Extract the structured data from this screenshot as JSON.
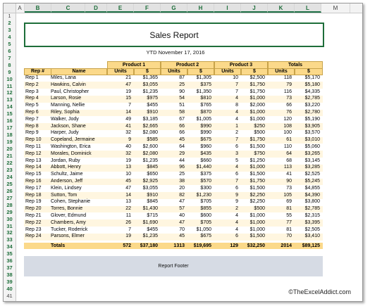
{
  "columns": [
    "A",
    "B",
    "C",
    "D",
    "E",
    "F",
    "G",
    "H",
    "I",
    "J",
    "K",
    "L",
    "M"
  ],
  "report": {
    "title": "Sales Report",
    "subtitle": "YTD November 17, 2016",
    "footer": "Report Footer"
  },
  "headers": {
    "groups": [
      "Product 1",
      "Product 2",
      "Product 3",
      "Totals"
    ],
    "rep_no": "Rep #",
    "name": "Name",
    "units": "Units",
    "dollars": "$"
  },
  "rows": [
    [
      "Rep 1",
      "Miles, Lana",
      "21",
      "$1,365",
      "87",
      "$1,305",
      "10",
      "$2,500",
      "118",
      "$5,170"
    ],
    [
      "Rep 2",
      "Hawkins, Calvin",
      "47",
      "$3,055",
      "25",
      "$375",
      "7",
      "$1,750",
      "79",
      "$5,180"
    ],
    [
      "Rep 3",
      "Paul, Christopher",
      "19",
      "$1,235",
      "90",
      "$1,350",
      "7",
      "$1,750",
      "116",
      "$4,335"
    ],
    [
      "Rep 4",
      "Larson, Rosie",
      "15",
      "$975",
      "54",
      "$810",
      "4",
      "$1,000",
      "73",
      "$2,785"
    ],
    [
      "Rep 5",
      "Manning, Nellie",
      "7",
      "$455",
      "51",
      "$765",
      "8",
      "$2,000",
      "66",
      "$3,220"
    ],
    [
      "Rep 6",
      "Riley, Sophia",
      "14",
      "$910",
      "58",
      "$870",
      "4",
      "$1,000",
      "76",
      "$2,780"
    ],
    [
      "Rep 7",
      "Walker, Jody",
      "49",
      "$3,185",
      "67",
      "$1,005",
      "4",
      "$1,000",
      "120",
      "$5,190"
    ],
    [
      "Rep 8",
      "Jackson, Shane",
      "41",
      "$2,665",
      "66",
      "$990",
      "1",
      "$250",
      "108",
      "$3,905"
    ],
    [
      "Rep 9",
      "Harper, Judy",
      "32",
      "$2,080",
      "66",
      "$990",
      "2",
      "$500",
      "100",
      "$3,570"
    ],
    [
      "Rep 10",
      "Copeland, Jermaine",
      "9",
      "$585",
      "45",
      "$675",
      "7",
      "$1,750",
      "61",
      "$3,010"
    ],
    [
      "Rep 11",
      "Washington, Erica",
      "40",
      "$2,600",
      "64",
      "$960",
      "6",
      "$1,500",
      "110",
      "$5,060"
    ],
    [
      "Rep 12",
      "Morales, Dominick",
      "32",
      "$2,080",
      "29",
      "$435",
      "3",
      "$750",
      "64",
      "$3,265"
    ],
    [
      "Rep 13",
      "Jordan, Ruby",
      "19",
      "$1,235",
      "44",
      "$660",
      "5",
      "$1,250",
      "68",
      "$3,145"
    ],
    [
      "Rep 14",
      "Abbott, Henry",
      "13",
      "$845",
      "96",
      "$1,440",
      "4",
      "$1,000",
      "113",
      "$3,285"
    ],
    [
      "Rep 15",
      "Schultz, Jaime",
      "10",
      "$650",
      "25",
      "$375",
      "6",
      "$1,500",
      "41",
      "$2,525"
    ],
    [
      "Rep 16",
      "Anderson, Jeff",
      "45",
      "$2,925",
      "38",
      "$570",
      "7",
      "$1,750",
      "90",
      "$5,245"
    ],
    [
      "Rep 17",
      "Klein, Lindsey",
      "47",
      "$3,055",
      "20",
      "$300",
      "6",
      "$1,500",
      "73",
      "$4,855"
    ],
    [
      "Rep 18",
      "Sutton, Tom",
      "14",
      "$910",
      "82",
      "$1,230",
      "9",
      "$2,250",
      "105",
      "$4,390"
    ],
    [
      "Rep 19",
      "Cohen, Stephanie",
      "13",
      "$845",
      "47",
      "$705",
      "9",
      "$2,250",
      "69",
      "$3,800"
    ],
    [
      "Rep 20",
      "Torres, Bonnie",
      "22",
      "$1,430",
      "57",
      "$855",
      "2",
      "$500",
      "81",
      "$2,785"
    ],
    [
      "Rep 21",
      "Glover, Edmund",
      "11",
      "$715",
      "40",
      "$600",
      "4",
      "$1,000",
      "55",
      "$2,315"
    ],
    [
      "Rep 22",
      "Chambers, Amy",
      "26",
      "$1,690",
      "47",
      "$705",
      "4",
      "$1,000",
      "77",
      "$3,395"
    ],
    [
      "Rep 23",
      "Tucker, Roderick",
      "7",
      "$455",
      "70",
      "$1,050",
      "4",
      "$1,000",
      "81",
      "$2,505"
    ],
    [
      "Rep 24",
      "Parsons, Elmer",
      "19",
      "$1,235",
      "45",
      "$675",
      "6",
      "$1,500",
      "70",
      "$3,410"
    ]
  ],
  "totals": [
    "Totals",
    "572",
    "$37,180",
    "1313",
    "$19,695",
    "129",
    "$32,250",
    "2014",
    "$89,125"
  ],
  "watermark": "©TheExcelAddict.com"
}
